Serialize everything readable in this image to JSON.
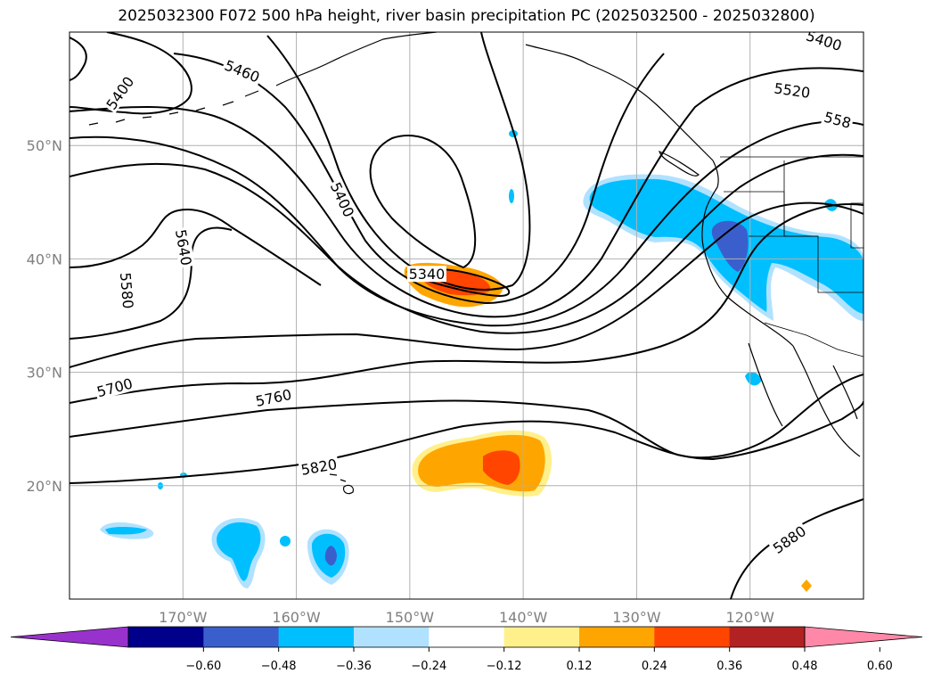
{
  "title": "2025032300 F072 500 hPa height, river basin precipitation PC (2025032500 - 2025032800)",
  "map": {
    "lon_range": [
      -180,
      -110
    ],
    "lat_range": [
      10,
      60
    ],
    "lon_ticks": [
      {
        "lon": -170,
        "label": "170°W"
      },
      {
        "lon": -160,
        "label": "160°W"
      },
      {
        "lon": -150,
        "label": "150°W"
      },
      {
        "lon": -140,
        "label": "140°W"
      },
      {
        "lon": -130,
        "label": "130°W"
      },
      {
        "lon": -120,
        "label": "120°W"
      }
    ],
    "lat_ticks": [
      {
        "lat": 50,
        "label": "50°N"
      },
      {
        "lat": 40,
        "label": "40°N"
      },
      {
        "lat": 30,
        "label": "30°N"
      },
      {
        "lat": 20,
        "label": "20°N"
      }
    ],
    "grid": true
  },
  "contour_labels": [
    {
      "text": "5400",
      "lon": -113.5,
      "lat": 59.2,
      "rot": 18
    },
    {
      "text": "5520",
      "lon": -116.3,
      "lat": 54.8,
      "rot": 8
    },
    {
      "text": "558",
      "lon": -112.3,
      "lat": 52.2,
      "rot": 15
    },
    {
      "text": "5460",
      "lon": -164.8,
      "lat": 56.5,
      "rot": 22
    },
    {
      "text": "5400",
      "lon": -175.5,
      "lat": 54.6,
      "rot": -55
    },
    {
      "text": "5400",
      "lon": -156.0,
      "lat": 45.2,
      "rot": 65
    },
    {
      "text": "5640",
      "lon": -170.0,
      "lat": 41.0,
      "rot": 80
    },
    {
      "text": "5580",
      "lon": -175.0,
      "lat": 37.2,
      "rot": 85
    },
    {
      "text": "5340",
      "lon": -148.5,
      "lat": 38.6,
      "rot": 0
    },
    {
      "text": "5700",
      "lon": -176.0,
      "lat": 28.6,
      "rot": -15
    },
    {
      "text": "5760",
      "lon": -162.0,
      "lat": 27.7,
      "rot": -12
    },
    {
      "text": "5820",
      "lon": -158.0,
      "lat": 21.6,
      "rot": -10
    },
    {
      "text": "5880",
      "lon": -116.5,
      "lat": 15.2,
      "rot": -35
    }
  ],
  "colorbar": {
    "ticks": [
      "−0.60",
      "−0.48",
      "−0.36",
      "−0.24",
      "−0.12",
      "0.12",
      "0.24",
      "0.36",
      "0.48",
      "0.60"
    ],
    "colors": [
      "#9932cc",
      "#00008b",
      "#3a5fcd",
      "#00bfff",
      "#b0e2ff",
      "#ffffff",
      "#fff08c",
      "#ffa500",
      "#ff4500",
      "#b22222",
      "#ff88a8"
    ],
    "extend": "both"
  },
  "colors": {
    "contour": "#000000",
    "grid": "#b0b0b0",
    "land_line": "#000000"
  }
}
